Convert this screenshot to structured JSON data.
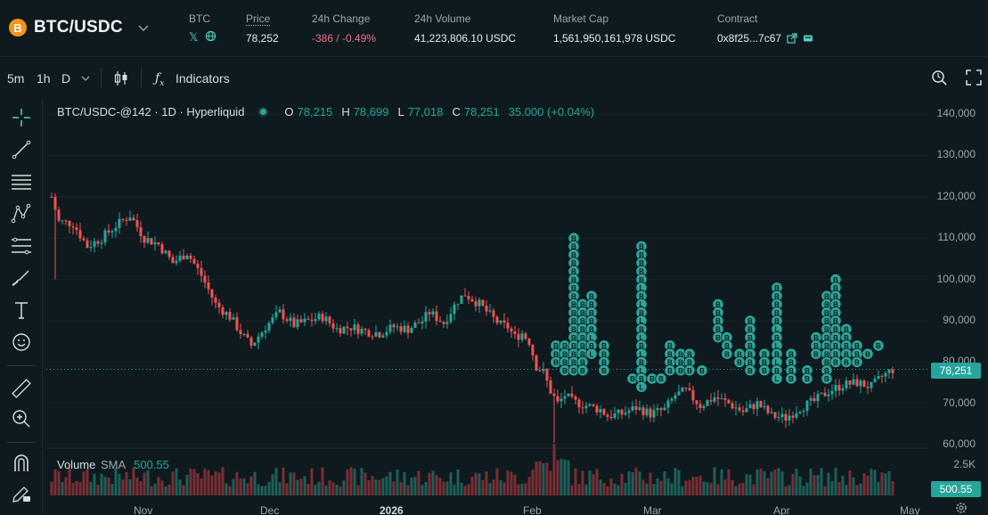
{
  "header": {
    "pair": "BTC/USDC",
    "coin_logo": "B",
    "coin_label": "BTC",
    "price_label": "Price",
    "price": "78,252",
    "change_label": "24h Change",
    "change": "-386 / -0.49%",
    "volume_label": "24h Volume",
    "volume": "41,223,806.10 USDC",
    "mcap_label": "Market Cap",
    "mcap": "1,561,950,161,978 USDC",
    "contract_label": "Contract",
    "contract": "0x8f25...7c67"
  },
  "toolbar": {
    "tf_5m": "5m",
    "tf_1h": "1h",
    "tf_d": "D",
    "indicators": "Indicators"
  },
  "legend": {
    "symbol": "BTC/USDC-@142 · 1D · Hyperliquid",
    "o_label": "O",
    "o": "78,215",
    "h_label": "H",
    "h": "78,699",
    "l_label": "L",
    "l": "77,018",
    "c_label": "C",
    "c": "78,251",
    "change": "35.000 (+0.04%)"
  },
  "volume_legend": {
    "label": "Volume",
    "sma": "SMA",
    "value": "500.55"
  },
  "price_axis": [
    "140,000",
    "130,000",
    "120,000",
    "110,000",
    "100,000",
    "90,000",
    "80,000",
    "70,000",
    "60,000"
  ],
  "volume_axis": [
    "2.5K"
  ],
  "last_price_tag": "78,251",
  "volume_tag": "500.55",
  "x_axis": [
    "Nov",
    "Dec",
    "2026",
    "Feb",
    "Mar",
    "Apr",
    "May"
  ],
  "marker_letters": {
    "buy": "B",
    "long": "L"
  },
  "colors": {
    "up": "#26a69a",
    "down": "#ef5350",
    "accent": "#50d2c1",
    "background": "#0f1a1f"
  },
  "icons": {
    "pair_chevron": "chevron-down-icon",
    "x_social": "x-logo-icon",
    "website": "globe-icon",
    "external": "external-link-icon",
    "wallet": "wallet-icon",
    "candles": "candlestick-icon",
    "indicators": "function-icon",
    "screenshot": "camera-zoom-icon",
    "fullscreen": "fullscreen-icon",
    "settings": "gear-icon"
  }
}
